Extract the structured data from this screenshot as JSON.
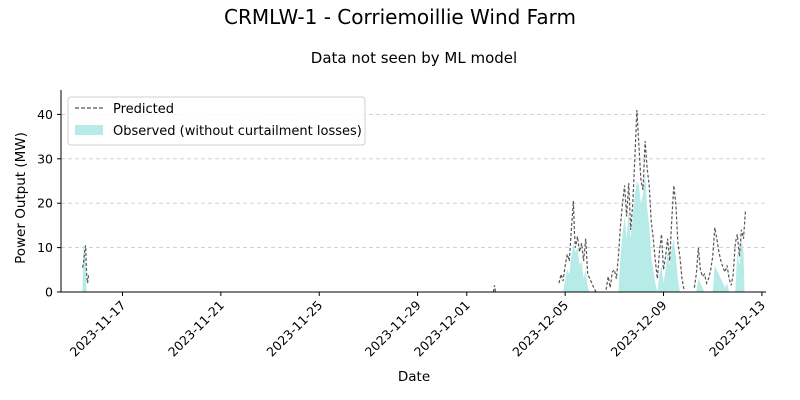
{
  "chart_data": {
    "type": "area",
    "title": "CRMLW-1 - Corriemoillie Wind Farm",
    "subtitle": "Data not seen by ML model",
    "xlabel": "Date",
    "ylabel": "Power Output (MW)",
    "x_range": [
      "2023-11-14T12:00",
      "2023-12-13T04:00"
    ],
    "ylim": [
      0,
      45.5
    ],
    "yticks": [
      0,
      10,
      20,
      30,
      40
    ],
    "xticks": [
      "2023-11-17",
      "2023-11-21",
      "2023-11-25",
      "2023-11-29",
      "2023-12-01",
      "2023-12-05",
      "2023-12-09",
      "2023-12-13"
    ],
    "grid": "y-dashed",
    "legend_position": "top-left",
    "colors": {
      "predicted": "#555555",
      "observed": "#b6ebe8",
      "grid": "#cccccc"
    },
    "series": [
      {
        "name": "Predicted",
        "style": "dashed-line",
        "segments": [
          [
            [
              "2023-11-15T09:00",
              5.5
            ],
            [
              "2023-11-15T10:00",
              6.5
            ],
            [
              "2023-11-15T11:00",
              9.0
            ],
            [
              "2023-11-15T12:00",
              10.5
            ],
            [
              "2023-11-15T13:00",
              4.0
            ],
            [
              "2023-11-15T14:00",
              2.0
            ],
            [
              "2023-11-15T15:00",
              4.0
            ]
          ],
          [
            [
              "2023-12-02T02:00",
              0.0
            ],
            [
              "2023-12-02T03:00",
              1.5
            ],
            [
              "2023-12-02T04:00",
              0.0
            ]
          ],
          [
            [
              "2023-12-04T18:00",
              2.0
            ],
            [
              "2023-12-04T20:00",
              4.0
            ],
            [
              "2023-12-04T22:00",
              2.5
            ],
            [
              "2023-12-05T00:00",
              6.0
            ],
            [
              "2023-12-05T02:00",
              8.5
            ],
            [
              "2023-12-05T04:00",
              7.0
            ],
            [
              "2023-12-05T06:00",
              14.0
            ],
            [
              "2023-12-05T07:00",
              17.0
            ],
            [
              "2023-12-05T08:00",
              20.5
            ],
            [
              "2023-12-05T09:00",
              13.5
            ],
            [
              "2023-12-05T10:00",
              10.0
            ],
            [
              "2023-12-05T12:00",
              12.5
            ],
            [
              "2023-12-05T14:00",
              9.0
            ],
            [
              "2023-12-05T16:00",
              11.0
            ],
            [
              "2023-12-05T18:00",
              7.0
            ],
            [
              "2023-12-05T20:00",
              12.0
            ],
            [
              "2023-12-05T22:00",
              4.0
            ],
            [
              "2023-12-06T00:00",
              3.0
            ],
            [
              "2023-12-06T02:00",
              2.0
            ],
            [
              "2023-12-06T04:00",
              1.0
            ],
            [
              "2023-12-06T06:00",
              0.0
            ]
          ],
          [
            [
              "2023-12-06T16:00",
              0.5
            ],
            [
              "2023-12-06T18:00",
              3.5
            ],
            [
              "2023-12-06T20:00",
              1.0
            ],
            [
              "2023-12-06T22:00",
              4.5
            ],
            [
              "2023-12-07T00:00",
              5.0
            ],
            [
              "2023-12-07T02:00",
              3.0
            ],
            [
              "2023-12-07T04:00",
              8.0
            ],
            [
              "2023-12-07T06:00",
              15.0
            ],
            [
              "2023-12-07T08:00",
              20.0
            ],
            [
              "2023-12-07T10:00",
              24.0
            ],
            [
              "2023-12-07T12:00",
              17.0
            ],
            [
              "2023-12-07T14:00",
              24.5
            ],
            [
              "2023-12-07T16:00",
              14.0
            ],
            [
              "2023-12-07T18:00",
              20.0
            ],
            [
              "2023-12-07T20:00",
              30.0
            ],
            [
              "2023-12-07T22:00",
              41.0
            ],
            [
              "2023-12-08T00:00",
              33.0
            ],
            [
              "2023-12-08T02:00",
              25.0
            ],
            [
              "2023-12-08T04:00",
              23.0
            ],
            [
              "2023-12-08T06:00",
              34.0
            ],
            [
              "2023-12-08T08:00",
              28.0
            ],
            [
              "2023-12-08T10:00",
              24.0
            ],
            [
              "2023-12-08T12:00",
              16.0
            ],
            [
              "2023-12-08T14:00",
              12.0
            ],
            [
              "2023-12-08T16:00",
              7.0
            ],
            [
              "2023-12-08T18:00",
              3.0
            ],
            [
              "2023-12-08T20:00",
              9.0
            ],
            [
              "2023-12-08T22:00",
              13.0
            ],
            [
              "2023-12-09T00:00",
              5.0
            ],
            [
              "2023-12-09T02:00",
              8.0
            ],
            [
              "2023-12-09T04:00",
              12.0
            ],
            [
              "2023-12-09T06:00",
              7.0
            ],
            [
              "2023-12-09T08:00",
              16.0
            ],
            [
              "2023-12-09T10:00",
              24.0
            ],
            [
              "2023-12-09T12:00",
              20.0
            ],
            [
              "2023-12-09T14:00",
              11.0
            ],
            [
              "2023-12-09T16:00",
              8.0
            ],
            [
              "2023-12-09T18:00",
              3.0
            ],
            [
              "2023-12-09T20:00",
              0.5
            ]
          ],
          [
            [
              "2023-12-10T06:00",
              1.0
            ],
            [
              "2023-12-10T08:00",
              4.0
            ],
            [
              "2023-12-10T10:00",
              10.0
            ],
            [
              "2023-12-10T12:00",
              5.0
            ],
            [
              "2023-12-10T14:00",
              3.5
            ],
            [
              "2023-12-10T16:00",
              4.0
            ],
            [
              "2023-12-10T18:00",
              2.0
            ],
            [
              "2023-12-10T20:00",
              3.0
            ],
            [
              "2023-12-10T22:00",
              5.0
            ],
            [
              "2023-12-11T00:00",
              8.0
            ],
            [
              "2023-12-11T02:00",
              14.5
            ],
            [
              "2023-12-11T04:00",
              12.0
            ],
            [
              "2023-12-11T06:00",
              9.0
            ],
            [
              "2023-12-11T08:00",
              7.0
            ],
            [
              "2023-12-11T10:00",
              5.5
            ],
            [
              "2023-12-11T12:00",
              4.5
            ],
            [
              "2023-12-11T14:00",
              6.0
            ],
            [
              "2023-12-11T16:00",
              3.0
            ],
            [
              "2023-12-11T18:00",
              1.5
            ],
            [
              "2023-12-11T20:00",
              4.0
            ],
            [
              "2023-12-11T22:00",
              11.0
            ],
            [
              "2023-12-12T00:00",
              13.0
            ],
            [
              "2023-12-12T02:00",
              8.0
            ],
            [
              "2023-12-12T04:00",
              14.0
            ],
            [
              "2023-12-12T06:00",
              12.0
            ],
            [
              "2023-12-12T08:00",
              18.5
            ]
          ]
        ]
      },
      {
        "name": "Observed (without curtailment losses)",
        "style": "filled-area",
        "segments": [
          [
            [
              "2023-11-15T09:00",
              0.0
            ],
            [
              "2023-11-15T10:00",
              11.0
            ],
            [
              "2023-11-15T11:00",
              9.0
            ],
            [
              "2023-11-15T12:00",
              7.0
            ],
            [
              "2023-11-15T13:00",
              0.0
            ]
          ],
          [
            [
              "2023-12-04T22:00",
              0.0
            ],
            [
              "2023-12-05T00:00",
              3.0
            ],
            [
              "2023-12-05T02:00",
              5.0
            ],
            [
              "2023-12-05T04:00",
              4.0
            ],
            [
              "2023-12-05T06:00",
              8.0
            ],
            [
              "2023-12-05T08:00",
              11.0
            ],
            [
              "2023-12-05T10:00",
              9.0
            ],
            [
              "2023-12-05T12:00",
              10.0
            ],
            [
              "2023-12-05T14:00",
              6.0
            ],
            [
              "2023-12-05T16:00",
              7.0
            ],
            [
              "2023-12-05T18:00",
              3.0
            ],
            [
              "2023-12-05T20:00",
              5.0
            ],
            [
              "2023-12-05T22:00",
              1.0
            ],
            [
              "2023-12-06T00:00",
              0.0
            ]
          ],
          [
            [
              "2023-12-07T04:00",
              0.0
            ],
            [
              "2023-12-07T06:00",
              8.0
            ],
            [
              "2023-12-07T08:00",
              13.0
            ],
            [
              "2023-12-07T10:00",
              17.0
            ],
            [
              "2023-12-07T12:00",
              12.0
            ],
            [
              "2023-12-07T14:00",
              18.0
            ],
            [
              "2023-12-07T16:00",
              12.0
            ],
            [
              "2023-12-07T18:00",
              17.0
            ],
            [
              "2023-12-07T20:00",
              22.0
            ],
            [
              "2023-12-07T22:00",
              25.0
            ],
            [
              "2023-12-08T00:00",
              24.0
            ],
            [
              "2023-12-08T02:00",
              20.0
            ],
            [
              "2023-12-08T04:00",
              22.0
            ],
            [
              "2023-12-08T06:00",
              27.0
            ],
            [
              "2023-12-08T08:00",
              19.0
            ],
            [
              "2023-12-08T10:00",
              15.0
            ],
            [
              "2023-12-08T12:00",
              8.0
            ],
            [
              "2023-12-08T14:00",
              5.0
            ],
            [
              "2023-12-08T16:00",
              2.0
            ],
            [
              "2023-12-08T18:00",
              0.0
            ],
            [
              "2023-12-08T20:00",
              4.0
            ],
            [
              "2023-12-08T22:00",
              6.0
            ],
            [
              "2023-12-09T00:00",
              2.0
            ],
            [
              "2023-12-09T02:00",
              5.0
            ],
            [
              "2023-12-09T04:00",
              9.0
            ],
            [
              "2023-12-09T06:00",
              6.0
            ],
            [
              "2023-12-09T08:00",
              10.0
            ],
            [
              "2023-12-09T10:00",
              12.0
            ],
            [
              "2023-12-09T12:00",
              8.0
            ],
            [
              "2023-12-09T14:00",
              3.0
            ],
            [
              "2023-12-09T16:00",
              0.0
            ]
          ],
          [
            [
              "2023-12-10T08:00",
              0.0
            ],
            [
              "2023-12-10T10:00",
              3.0
            ],
            [
              "2023-12-10T12:00",
              2.0
            ],
            [
              "2023-12-10T14:00",
              1.0
            ],
            [
              "2023-12-10T16:00",
              0.0
            ]
          ],
          [
            [
              "2023-12-11T00:00",
              0.0
            ],
            [
              "2023-12-11T02:00",
              6.0
            ],
            [
              "2023-12-11T04:00",
              5.0
            ],
            [
              "2023-12-11T06:00",
              4.0
            ],
            [
              "2023-12-11T08:00",
              3.0
            ],
            [
              "2023-12-11T10:00",
              2.0
            ],
            [
              "2023-12-11T12:00",
              1.0
            ],
            [
              "2023-12-11T14:00",
              2.0
            ],
            [
              "2023-12-11T16:00",
              0.0
            ]
          ],
          [
            [
              "2023-12-11T22:00",
              0.0
            ],
            [
              "2023-12-12T00:00",
              9.0
            ],
            [
              "2023-12-12T02:00",
              6.0
            ],
            [
              "2023-12-12T04:00",
              12.0
            ],
            [
              "2023-12-12T06:00",
              9.0
            ],
            [
              "2023-12-12T07:00",
              0.0
            ]
          ]
        ]
      }
    ]
  }
}
